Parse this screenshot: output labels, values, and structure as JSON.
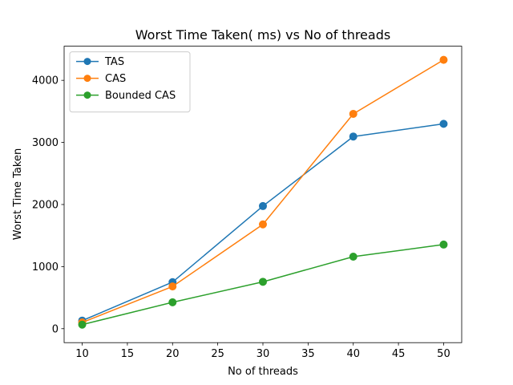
{
  "chart_data": {
    "type": "line",
    "title": "Worst Time Taken( ms) vs No of threads",
    "xlabel": "No of threads",
    "ylabel": "Worst Time Taken",
    "x": [
      10,
      20,
      30,
      40,
      50
    ],
    "xlim": [
      8,
      52
    ],
    "ylim": [
      -225,
      4550
    ],
    "xticks": [
      10,
      15,
      20,
      25,
      30,
      35,
      40,
      45,
      50
    ],
    "yticks": [
      0,
      1000,
      2000,
      3000,
      4000
    ],
    "grid": false,
    "legend_position": "upper left",
    "series": [
      {
        "name": "TAS",
        "color": "#1f77b4",
        "values": [
          130,
          750,
          1975,
          3095,
          3300
        ]
      },
      {
        "name": "CAS",
        "color": "#ff7f0e",
        "values": [
          100,
          680,
          1680,
          3460,
          4330
        ]
      },
      {
        "name": "Bounded CAS",
        "color": "#2ca02c",
        "values": [
          65,
          425,
          755,
          1160,
          1355
        ]
      }
    ]
  }
}
